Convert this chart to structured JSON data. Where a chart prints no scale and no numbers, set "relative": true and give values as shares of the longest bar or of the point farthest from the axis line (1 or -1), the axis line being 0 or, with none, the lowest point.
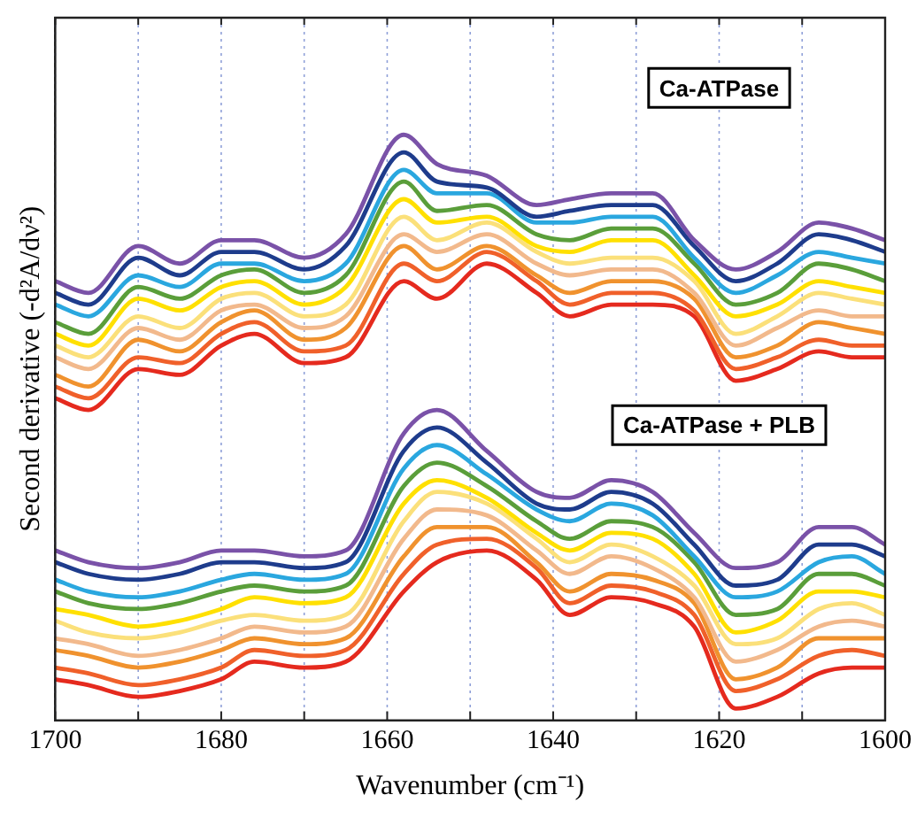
{
  "chart_data": {
    "type": "line",
    "xlabel": "Wavenumber (cm⁻¹)",
    "ylabel": "Second derivative (-d²A/dν²)",
    "relative": true,
    "marker": "none",
    "line_style": "solid",
    "grid": "x",
    "annotations": [
      "Ca-ATPase",
      "Ca-ATPase + PLB"
    ],
    "xlim": [
      1700,
      1600
    ],
    "xticks": [
      1700,
      {
        "value": 1690,
        "label": null
      },
      1680,
      {
        "value": 1670,
        "label": null
      },
      1660,
      {
        "value": 1650,
        "label": null
      },
      1640,
      {
        "value": 1630,
        "label": null
      },
      1620,
      {
        "value": 1610,
        "label": null
      },
      1600
    ],
    "x": [
      1700,
      1696,
      1690,
      1685,
      1680,
      1676,
      1670,
      1665,
      1658,
      1654,
      1648,
      1642,
      1638,
      1633,
      1628,
      1623,
      1618,
      1613,
      1608,
      1604,
      1600
    ],
    "series": [
      {
        "color": "#7a52a8",
        "values": [
          0.75,
          0.73,
          0.81,
          0.78,
          0.82,
          0.82,
          0.79,
          0.83,
          1.0,
          0.95,
          0.93,
          0.88,
          0.89,
          0.9,
          0.9,
          0.82,
          0.77,
          0.8,
          0.85,
          0.84,
          0.82
        ]
      },
      {
        "color": "#1e3c8c",
        "values": [
          0.73,
          0.71,
          0.79,
          0.76,
          0.8,
          0.8,
          0.77,
          0.81,
          0.97,
          0.92,
          0.91,
          0.86,
          0.87,
          0.88,
          0.88,
          0.81,
          0.75,
          0.78,
          0.83,
          0.82,
          0.8
        ]
      },
      {
        "color": "#2aa7df",
        "values": [
          0.71,
          0.69,
          0.76,
          0.74,
          0.78,
          0.78,
          0.75,
          0.78,
          0.94,
          0.9,
          0.9,
          0.85,
          0.85,
          0.86,
          0.86,
          0.79,
          0.73,
          0.76,
          0.8,
          0.79,
          0.78
        ]
      },
      {
        "color": "#5a9e3a",
        "values": [
          0.68,
          0.66,
          0.74,
          0.72,
          0.76,
          0.77,
          0.73,
          0.76,
          0.92,
          0.87,
          0.88,
          0.83,
          0.82,
          0.84,
          0.84,
          0.78,
          0.71,
          0.73,
          0.78,
          0.77,
          0.75
        ]
      },
      {
        "color": "#ffe000",
        "values": [
          0.66,
          0.64,
          0.72,
          0.7,
          0.74,
          0.75,
          0.71,
          0.74,
          0.89,
          0.85,
          0.86,
          0.81,
          0.8,
          0.82,
          0.82,
          0.76,
          0.69,
          0.71,
          0.75,
          0.74,
          0.73
        ]
      },
      {
        "color": "#fbe07a",
        "values": [
          0.64,
          0.62,
          0.69,
          0.67,
          0.72,
          0.73,
          0.69,
          0.71,
          0.86,
          0.82,
          0.85,
          0.8,
          0.78,
          0.79,
          0.79,
          0.75,
          0.66,
          0.69,
          0.73,
          0.72,
          0.71
        ]
      },
      {
        "color": "#f2b98c",
        "values": [
          0.62,
          0.6,
          0.67,
          0.65,
          0.7,
          0.71,
          0.67,
          0.69,
          0.83,
          0.8,
          0.83,
          0.78,
          0.76,
          0.77,
          0.77,
          0.73,
          0.64,
          0.67,
          0.7,
          0.69,
          0.69
        ]
      },
      {
        "color": "#f0922e",
        "values": [
          0.59,
          0.57,
          0.65,
          0.63,
          0.68,
          0.7,
          0.65,
          0.67,
          0.81,
          0.77,
          0.81,
          0.76,
          0.73,
          0.75,
          0.75,
          0.72,
          0.62,
          0.64,
          0.68,
          0.67,
          0.66
        ]
      },
      {
        "color": "#f0602a",
        "values": [
          0.57,
          0.55,
          0.62,
          0.61,
          0.66,
          0.68,
          0.63,
          0.64,
          0.78,
          0.75,
          0.8,
          0.75,
          0.71,
          0.73,
          0.73,
          0.7,
          0.6,
          0.62,
          0.65,
          0.64,
          0.64
        ]
      },
      {
        "color": "#e52a1e",
        "values": [
          0.55,
          0.53,
          0.6,
          0.59,
          0.64,
          0.66,
          0.61,
          0.62,
          0.75,
          0.72,
          0.78,
          0.73,
          0.69,
          0.71,
          0.71,
          0.69,
          0.58,
          0.6,
          0.63,
          0.62,
          0.62
        ]
      },
      {
        "color": "#7a52a8",
        "values": [
          0.29,
          0.27,
          0.26,
          0.27,
          0.29,
          0.29,
          0.28,
          0.29,
          0.49,
          0.53,
          0.46,
          0.39,
          0.38,
          0.41,
          0.39,
          0.32,
          0.26,
          0.27,
          0.33,
          0.33,
          0.3
        ]
      },
      {
        "color": "#1e3c8c",
        "values": [
          0.27,
          0.25,
          0.24,
          0.25,
          0.27,
          0.27,
          0.26,
          0.27,
          0.46,
          0.5,
          0.44,
          0.37,
          0.36,
          0.39,
          0.37,
          0.3,
          0.23,
          0.24,
          0.3,
          0.3,
          0.28
        ]
      },
      {
        "color": "#2aa7df",
        "values": [
          0.24,
          0.22,
          0.21,
          0.22,
          0.24,
          0.25,
          0.24,
          0.25,
          0.43,
          0.47,
          0.42,
          0.36,
          0.34,
          0.37,
          0.35,
          0.28,
          0.21,
          0.22,
          0.27,
          0.28,
          0.25
        ]
      },
      {
        "color": "#5a9e3a",
        "values": [
          0.22,
          0.2,
          0.19,
          0.2,
          0.22,
          0.23,
          0.22,
          0.23,
          0.4,
          0.44,
          0.4,
          0.34,
          0.31,
          0.34,
          0.33,
          0.27,
          0.18,
          0.19,
          0.25,
          0.25,
          0.23
        ]
      },
      {
        "color": "#ffe000",
        "values": [
          0.19,
          0.18,
          0.16,
          0.17,
          0.19,
          0.21,
          0.2,
          0.21,
          0.37,
          0.41,
          0.38,
          0.32,
          0.29,
          0.32,
          0.31,
          0.25,
          0.15,
          0.17,
          0.22,
          0.22,
          0.21
        ]
      },
      {
        "color": "#fbe07a",
        "values": [
          0.17,
          0.15,
          0.14,
          0.15,
          0.17,
          0.18,
          0.17,
          0.18,
          0.34,
          0.39,
          0.37,
          0.31,
          0.27,
          0.3,
          0.28,
          0.23,
          0.13,
          0.14,
          0.19,
          0.2,
          0.18
        ]
      },
      {
        "color": "#f2b98c",
        "values": [
          0.14,
          0.13,
          0.11,
          0.12,
          0.14,
          0.16,
          0.15,
          0.16,
          0.31,
          0.36,
          0.35,
          0.29,
          0.25,
          0.28,
          0.26,
          0.21,
          0.1,
          0.12,
          0.16,
          0.17,
          0.16
        ]
      },
      {
        "color": "#f0922e",
        "values": [
          0.12,
          0.11,
          0.09,
          0.1,
          0.12,
          0.14,
          0.13,
          0.14,
          0.28,
          0.33,
          0.33,
          0.27,
          0.22,
          0.25,
          0.24,
          0.2,
          0.07,
          0.09,
          0.14,
          0.14,
          0.14
        ]
      },
      {
        "color": "#f0602a",
        "values": [
          0.09,
          0.08,
          0.06,
          0.07,
          0.09,
          0.12,
          0.11,
          0.12,
          0.25,
          0.3,
          0.31,
          0.26,
          0.2,
          0.23,
          0.22,
          0.18,
          0.05,
          0.07,
          0.11,
          0.12,
          0.11
        ]
      },
      {
        "color": "#e52a1e",
        "values": [
          0.07,
          0.06,
          0.04,
          0.05,
          0.07,
          0.1,
          0.09,
          0.1,
          0.22,
          0.27,
          0.29,
          0.24,
          0.18,
          0.21,
          0.2,
          0.16,
          0.02,
          0.04,
          0.08,
          0.09,
          0.09
        ]
      }
    ]
  }
}
